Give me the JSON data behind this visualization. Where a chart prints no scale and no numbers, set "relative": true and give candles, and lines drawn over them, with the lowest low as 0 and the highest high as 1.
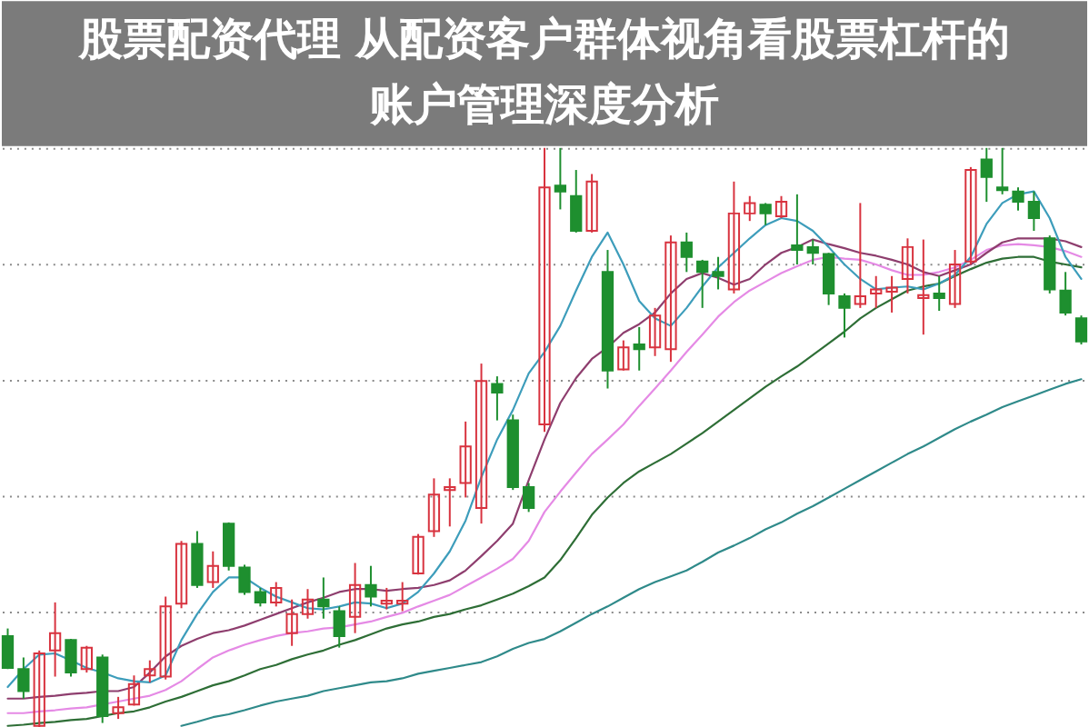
{
  "chart_data": {
    "type": "candlestick",
    "title": "股票配资代理 从配资客户群体视角看股票杠杆的账户管理深度分析",
    "relative": true,
    "grid": "y",
    "categories": [
      null,
      null,
      null,
      null,
      null,
      null,
      null,
      null,
      null,
      null,
      null,
      null,
      null,
      null,
      null,
      null,
      null,
      null,
      null,
      null,
      null,
      null,
      null,
      null,
      null,
      null,
      null,
      null,
      null,
      null,
      null,
      null,
      null,
      null,
      null,
      null,
      null,
      null,
      null,
      null,
      null,
      null,
      null,
      null,
      null,
      null,
      null,
      null,
      null,
      null,
      null,
      null,
      null,
      null,
      null,
      null,
      null,
      null,
      null,
      null,
      null,
      null,
      null,
      null,
      null,
      null,
      null,
      null,
      null
    ],
    "ohlc": [
      [
        0.158,
        0.171,
        0.101,
        0.103
      ],
      [
        0.101,
        0.121,
        0.05,
        0.063
      ],
      [
        0.003,
        0.133,
        0,
        0.128
      ],
      [
        0.133,
        0.216,
        0.088,
        0.163
      ],
      [
        0.151,
        0.153,
        0.088,
        0.095
      ],
      [
        0.101,
        0.141,
        0.095,
        0.138
      ],
      [
        0.121,
        0.126,
        0.008,
        0.02
      ],
      [
        0.025,
        0.053,
        0.015,
        0.035
      ],
      [
        0.04,
        0.09,
        0.038,
        0.075
      ],
      [
        0.09,
        0.116,
        0.078,
        0.101
      ],
      [
        0.088,
        0.226,
        0.083,
        0.209
      ],
      [
        0.214,
        0.322,
        0.206,
        0.317
      ],
      [
        0.317,
        0.339,
        0.241,
        0.246
      ],
      [
        0.251,
        0.304,
        0.241,
        0.279
      ],
      [
        0.352,
        0.354,
        0.271,
        0.279
      ],
      [
        0.276,
        0.281,
        0.229,
        0.234
      ],
      [
        0.234,
        0.241,
        0.209,
        0.216
      ],
      [
        0.216,
        0.251,
        0.209,
        0.241
      ],
      [
        0.163,
        0.221,
        0.141,
        0.196
      ],
      [
        0.196,
        0.239,
        0.188,
        0.221
      ],
      [
        0.221,
        0.259,
        0.188,
        0.209
      ],
      [
        0.201,
        0.209,
        0.138,
        0.158
      ],
      [
        0.191,
        0.284,
        0.163,
        0.246
      ],
      [
        0.246,
        0.279,
        0.209,
        0.226
      ],
      [
        0.214,
        0.241,
        0.204,
        0.219
      ],
      [
        0.214,
        0.251,
        0.201,
        0.219
      ],
      [
        0.266,
        0.334,
        0.264,
        0.329
      ],
      [
        0.339,
        0.43,
        0.329,
        0.402
      ],
      [
        0.41,
        0.43,
        0.347,
        0.415
      ],
      [
        0.422,
        0.528,
        0.397,
        0.485
      ],
      [
        0.379,
        0.628,
        0.352,
        0.598
      ],
      [
        0.593,
        0.606,
        0.53,
        0.578
      ],
      [
        0.53,
        0.54,
        0.41,
        0.415
      ],
      [
        0.415,
        0.422,
        0.372,
        0.379
      ],
      [
        0.523,
        1,
        0.51,
        0.932
      ],
      [
        0.935,
        1,
        0.894,
        0.925
      ],
      [
        0.917,
        0.962,
        0.854,
        0.857
      ],
      [
        0.857,
        0.955,
        0.854,
        0.942
      ],
      [
        0.786,
        0.824,
        0.585,
        0.616
      ],
      [
        0.618,
        0.668,
        0.616,
        0.656
      ],
      [
        0.661,
        0.691,
        0.616,
        0.653
      ],
      [
        0.656,
        0.724,
        0.641,
        0.711
      ],
      [
        0.653,
        0.849,
        0.631,
        0.837
      ],
      [
        0.837,
        0.854,
        0.786,
        0.812
      ],
      [
        0.804,
        0.807,
        0.724,
        0.786
      ],
      [
        0.786,
        0.812,
        0.756,
        0.779
      ],
      [
        0.756,
        0.942,
        0.749,
        0.887
      ],
      [
        0.887,
        0.917,
        0.874,
        0.905
      ],
      [
        0.902,
        0.905,
        0.867,
        0.887
      ],
      [
        0.882,
        0.917,
        0.879,
        0.907
      ],
      [
        0.832,
        0.92,
        0.799,
        0.824
      ],
      [
        0.829,
        0.842,
        0.799,
        0.819
      ],
      [
        0.817,
        0.819,
        0.729,
        0.749
      ],
      [
        0.744,
        0.749,
        0.673,
        0.724
      ],
      [
        0.731,
        0.905,
        0.724,
        0.744
      ],
      [
        0.749,
        0.779,
        0.724,
        0.756
      ],
      [
        0.752,
        0.779,
        0.716,
        0.759
      ],
      [
        0.774,
        0.844,
        0.749,
        0.829
      ],
      [
        0.741,
        0.842,
        0.678,
        0.746
      ],
      [
        0.749,
        0.779,
        0.719,
        0.741
      ],
      [
        0.731,
        0.824,
        0.724,
        0.799
      ],
      [
        0.804,
        0.967,
        0.799,
        0.962
      ],
      [
        0.98,
        1,
        0.907,
        0.95
      ],
      [
        0.932,
        1,
        0.92,
        0.927
      ],
      [
        0.925,
        0.932,
        0.892,
        0.907
      ],
      [
        0.907,
        0.925,
        0.857,
        0.879
      ],
      [
        0.844,
        0.849,
        0.749,
        0.756
      ],
      [
        0.754,
        0.786,
        0.711,
        0.716
      ],
      [
        0.706,
        0.711,
        0.661,
        0.666
      ]
    ],
    "colors": [
      "#1e8f2f",
      "#1e8f2f",
      "#d8333f",
      "#d8333f",
      "#1e8f2f",
      "#d8333f",
      "#1e8f2f",
      "#d8333f",
      "#d8333f",
      "#d8333f",
      "#d8333f",
      "#d8333f",
      "#1e8f2f",
      "#d8333f",
      "#1e8f2f",
      "#1e8f2f",
      "#1e8f2f",
      "#d8333f",
      "#d8333f",
      "#d8333f",
      "#1e8f2f",
      "#1e8f2f",
      "#d8333f",
      "#1e8f2f",
      "#d8333f",
      "#d8333f",
      "#d8333f",
      "#d8333f",
      "#d8333f",
      "#d8333f",
      "#d8333f",
      "#1e8f2f",
      "#1e8f2f",
      "#1e8f2f",
      "#d8333f",
      "#1e8f2f",
      "#1e8f2f",
      "#d8333f",
      "#1e8f2f",
      "#d8333f",
      "#1e8f2f",
      "#d8333f",
      "#d8333f",
      "#1e8f2f",
      "#1e8f2f",
      "#1e8f2f",
      "#d8333f",
      "#d8333f",
      "#1e8f2f",
      "#d8333f",
      "#1e8f2f",
      "#1e8f2f",
      "#1e8f2f",
      "#1e8f2f",
      "#d8333f",
      "#d8333f",
      "#d8333f",
      "#d8333f",
      "#d8333f",
      "#1e8f2f",
      "#d8333f",
      "#d8333f",
      "#1e8f2f",
      "#1e8f2f",
      "#1e8f2f",
      "#1e8f2f",
      "#1e8f2f",
      "#1e8f2f",
      "#1e8f2f"
    ],
    "series": [
      {
        "type": "line",
        "color": "#2f8a8a",
        "values": [
          null,
          null,
          null,
          null,
          null,
          null,
          null,
          null,
          null,
          null,
          null,
          0.003,
          0.01,
          0.018,
          0.023,
          0.03,
          0.038,
          0.045,
          0.05,
          0.055,
          0.063,
          0.068,
          0.073,
          0.078,
          0.08,
          0.085,
          0.093,
          0.098,
          0.103,
          0.108,
          0.113,
          0.123,
          0.136,
          0.146,
          0.153,
          0.166,
          0.181,
          0.196,
          0.209,
          0.224,
          0.239,
          0.251,
          0.261,
          0.271,
          0.286,
          0.302,
          0.314,
          0.327,
          0.342,
          0.354,
          0.369,
          0.382,
          0.397,
          0.412,
          0.427,
          0.442,
          0.457,
          0.472,
          0.485,
          0.5,
          0.515,
          0.528,
          0.54,
          0.553,
          0.563,
          0.573,
          0.583,
          0.593,
          0.601
        ]
      },
      {
        "type": "line",
        "color": "#2e6e36",
        "values": [
          0.003,
          0.005,
          0.008,
          0.01,
          0.013,
          0.015,
          0.02,
          0.025,
          0.028,
          0.035,
          0.045,
          0.053,
          0.063,
          0.073,
          0.08,
          0.09,
          0.101,
          0.108,
          0.118,
          0.126,
          0.133,
          0.143,
          0.151,
          0.161,
          0.171,
          0.178,
          0.183,
          0.191,
          0.196,
          0.204,
          0.211,
          0.221,
          0.231,
          0.244,
          0.259,
          0.289,
          0.327,
          0.367,
          0.397,
          0.422,
          0.442,
          0.457,
          0.472,
          0.49,
          0.508,
          0.528,
          0.548,
          0.568,
          0.588,
          0.606,
          0.623,
          0.643,
          0.663,
          0.683,
          0.706,
          0.724,
          0.739,
          0.754,
          0.761,
          0.766,
          0.779,
          0.791,
          0.802,
          0.809,
          0.812,
          0.812,
          0.804,
          0.799,
          0.794
        ]
      },
      {
        "type": "line",
        "color": "#e58ae5",
        "values": [
          0.025,
          0.025,
          0.028,
          0.03,
          0.033,
          0.035,
          0.04,
          0.045,
          0.05,
          0.055,
          0.065,
          0.08,
          0.101,
          0.121,
          0.133,
          0.143,
          0.151,
          0.158,
          0.163,
          0.166,
          0.171,
          0.173,
          0.178,
          0.183,
          0.191,
          0.198,
          0.209,
          0.219,
          0.229,
          0.244,
          0.259,
          0.274,
          0.291,
          0.322,
          0.372,
          0.407,
          0.44,
          0.472,
          0.497,
          0.523,
          0.555,
          0.585,
          0.616,
          0.648,
          0.678,
          0.709,
          0.734,
          0.754,
          0.769,
          0.784,
          0.796,
          0.807,
          0.812,
          0.809,
          0.807,
          0.799,
          0.789,
          0.781,
          0.781,
          0.786,
          0.794,
          0.807,
          0.824,
          0.832,
          0.834,
          0.832,
          0.829,
          0.822,
          0.812
        ]
      },
      {
        "type": "line",
        "color": "#8e3e6e",
        "values": [
          0.05,
          0.05,
          0.053,
          0.055,
          0.058,
          0.06,
          0.063,
          0.063,
          0.07,
          0.095,
          0.123,
          0.141,
          0.153,
          0.163,
          0.168,
          0.176,
          0.186,
          0.196,
          0.206,
          0.216,
          0.224,
          0.234,
          0.239,
          0.239,
          0.236,
          0.239,
          0.241,
          0.246,
          0.254,
          0.271,
          0.296,
          0.322,
          0.352,
          0.427,
          0.497,
          0.56,
          0.603,
          0.636,
          0.656,
          0.681,
          0.696,
          0.716,
          0.749,
          0.774,
          0.784,
          0.776,
          0.764,
          0.774,
          0.799,
          0.819,
          0.829,
          0.842,
          0.834,
          0.827,
          0.819,
          0.814,
          0.807,
          0.799,
          0.786,
          0.779,
          0.789,
          0.799,
          0.819,
          0.837,
          0.844,
          0.844,
          0.844,
          0.839,
          0.829
        ]
      },
      {
        "type": "line",
        "color": "#3d9dbb",
        "values": [
          0.07,
          0.101,
          0.126,
          0.128,
          0.116,
          0.103,
          0.095,
          0.085,
          0.08,
          0.078,
          0.09,
          0.151,
          0.196,
          0.234,
          0.259,
          0.259,
          0.241,
          0.226,
          0.216,
          0.206,
          0.204,
          0.209,
          0.216,
          0.214,
          0.206,
          0.214,
          0.234,
          0.266,
          0.304,
          0.357,
          0.432,
          0.497,
          0.548,
          0.611,
          0.648,
          0.693,
          0.754,
          0.812,
          0.854,
          0.799,
          0.736,
          0.706,
          0.693,
          0.724,
          0.761,
          0.794,
          0.819,
          0.844,
          0.867,
          0.879,
          0.874,
          0.857,
          0.829,
          0.799,
          0.774,
          0.756,
          0.759,
          0.761,
          0.756,
          0.766,
          0.781,
          0.812,
          0.869,
          0.905,
          0.92,
          0.925,
          0.879,
          0.812,
          0.774
        ]
      }
    ]
  }
}
